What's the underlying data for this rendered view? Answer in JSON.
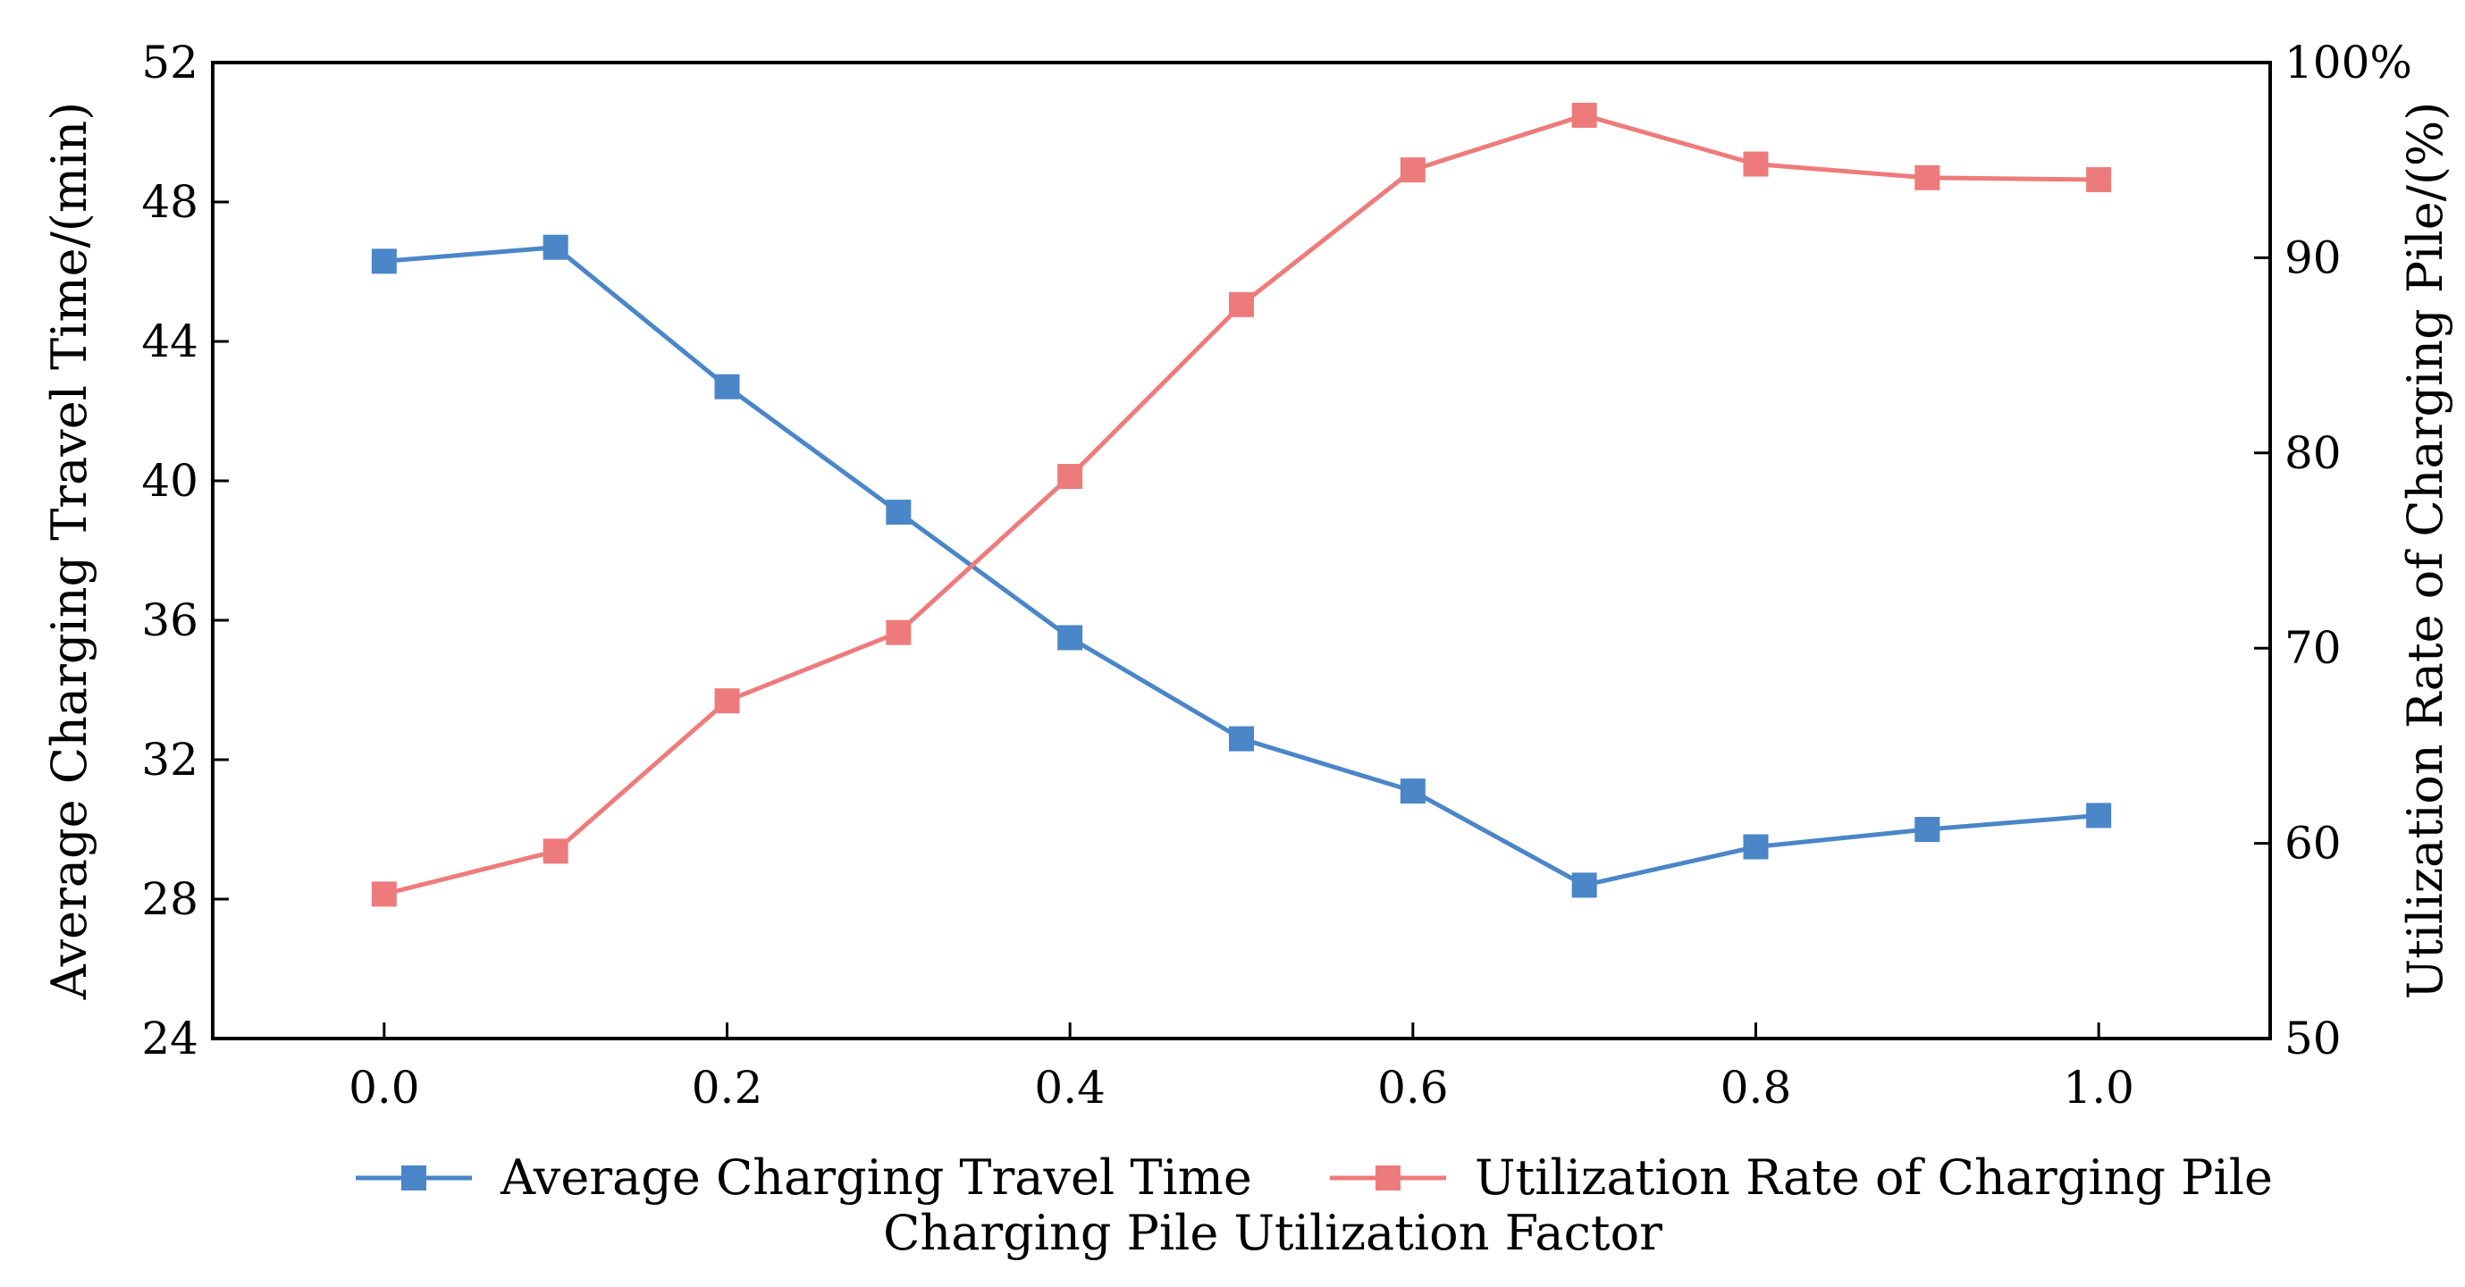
{
  "chart_data": {
    "type": "line",
    "title": "",
    "xlabel": "Charging Pile Utilization Factor",
    "ylabel_left": "Average Charging Travel Time/(min)",
    "ylabel_right": "Utilization Rate of Charging Pile/(%)",
    "x": [
      0.0,
      0.1,
      0.2,
      0.3,
      0.4,
      0.5,
      0.6,
      0.7,
      0.8,
      0.9,
      1.0
    ],
    "xlim": [
      -0.1,
      1.1
    ],
    "xticks": [
      "0.0",
      "0.2",
      "0.4",
      "0.6",
      "0.8",
      "1.0"
    ],
    "ylim_left": [
      24,
      52
    ],
    "yticks_left": [
      "24",
      "28",
      "32",
      "36",
      "40",
      "44",
      "48",
      "52"
    ],
    "ylim_right": [
      50,
      100
    ],
    "yticks_right": [
      "50",
      "60",
      "70",
      "80",
      "90",
      "100%"
    ],
    "grid": false,
    "legend_position": "bottom-center",
    "series": [
      {
        "name": "Average Charging Travel Time",
        "axis": "left",
        "color": "#4a86c8",
        "marker": "square",
        "values": [
          46.3,
          46.7,
          42.7,
          39.1,
          35.5,
          32.6,
          31.1,
          28.4,
          29.5,
          30.0,
          30.4
        ]
      },
      {
        "name": "Utilization Rate of Charging Pile",
        "axis": "right",
        "color": "#ee7b7b",
        "marker": "square",
        "values": [
          57.4,
          59.6,
          67.3,
          70.8,
          78.8,
          87.6,
          94.5,
          97.3,
          94.8,
          94.1,
          94.0
        ]
      }
    ]
  }
}
